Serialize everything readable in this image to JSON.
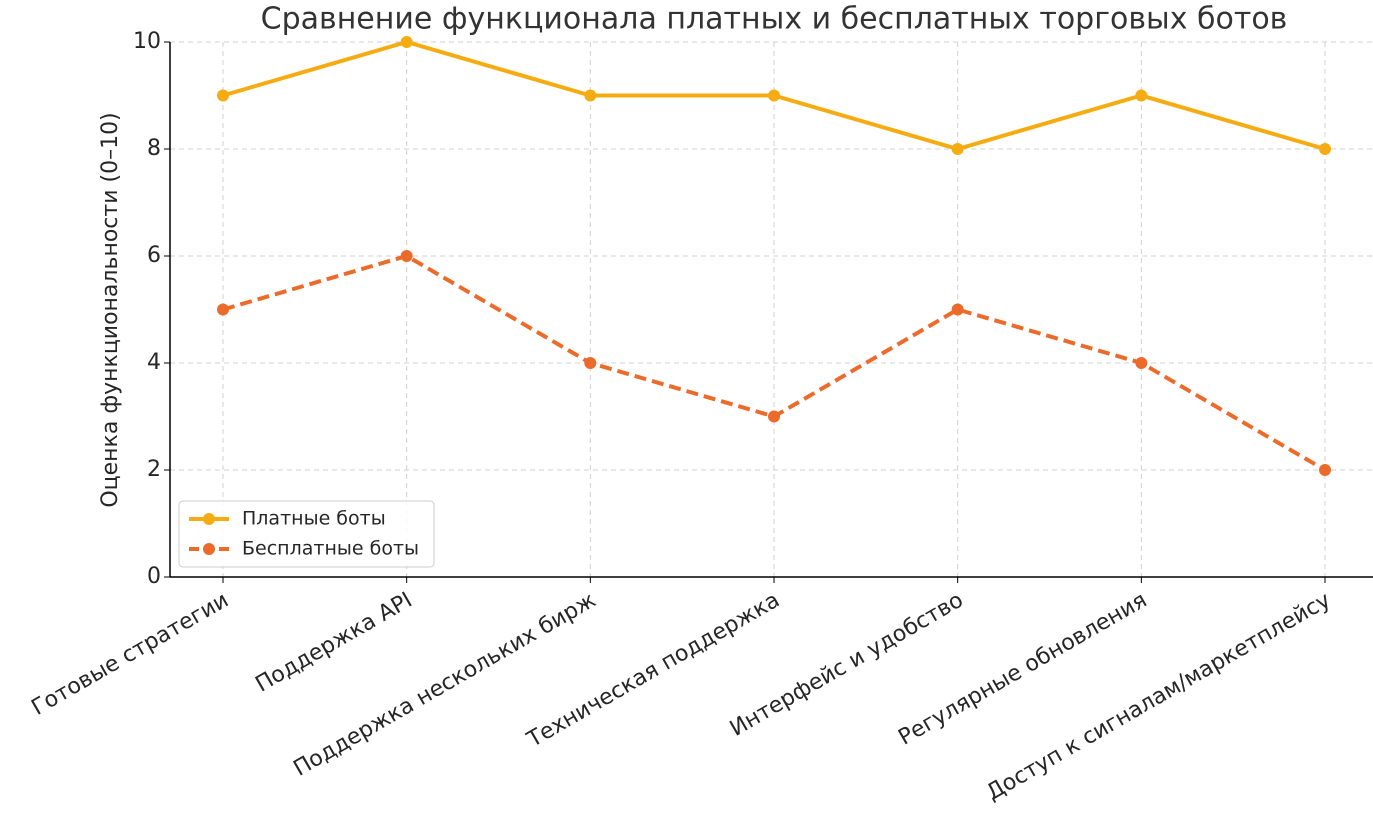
{
  "chart_data": {
    "type": "line",
    "title": "Сравнение функционала платных и бесплатных торговых ботов",
    "y_label": "Оценка функциональности (0–10)",
    "categories": [
      "Готовые стратегии",
      "Поддержка API",
      "Поддержка нескольких бирж",
      "Техническая поддержка",
      "Интерфейс и удобство",
      "Регулярные обновления",
      "Доступ к сигналам/маркетплейсу"
    ],
    "series": [
      {
        "name": "Платные боты",
        "color": "#f5ac12",
        "linestyle": "solid",
        "values": [
          9,
          10,
          9,
          9,
          8,
          9,
          8
        ]
      },
      {
        "name": "Бесплатные боты",
        "color": "#ec6b2b",
        "linestyle": "dashed",
        "values": [
          5,
          6,
          4,
          3,
          5,
          4,
          2
        ]
      }
    ],
    "ylim": [
      0,
      10
    ],
    "yticks": [
      0,
      2,
      4,
      6,
      8,
      10
    ],
    "grid": true,
    "legend": "lower left"
  }
}
